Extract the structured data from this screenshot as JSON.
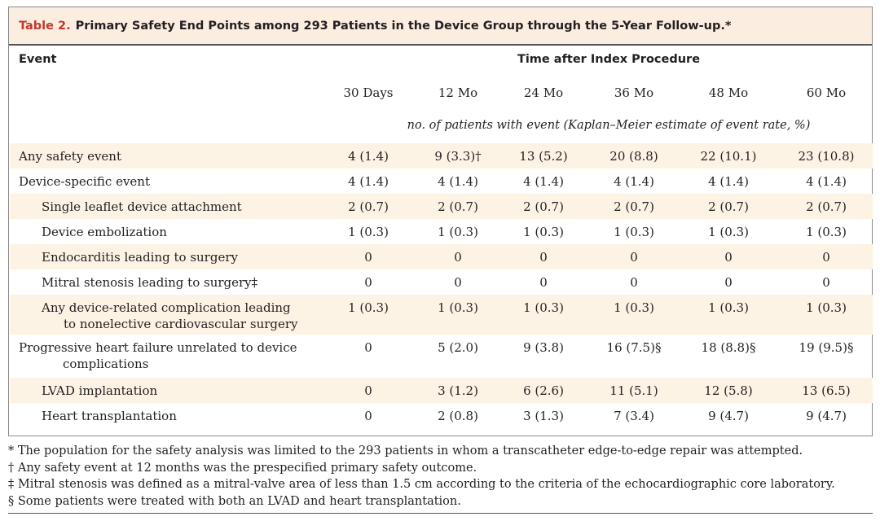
{
  "title": {
    "label": "Table 2.",
    "text": "Primary Safety End Points among 293 Patients in the Device Group through the 5-Year Follow-up.*"
  },
  "header": {
    "event_label": "Event",
    "group_label": "Time after Index Procedure",
    "columns": [
      "30 Days",
      "12 Mo",
      "24 Mo",
      "36 Mo",
      "48 Mo",
      "60 Mo"
    ],
    "units": "no. of patients with event (Kaplan–Meier estimate of event rate, %)"
  },
  "rows": [
    {
      "label": "Any safety event",
      "label2": "",
      "indent": false,
      "values": [
        "4 (1.4)",
        "9 (3.3)†",
        "13 (5.2)",
        "20 (8.8)",
        "22 (10.1)",
        "23 (10.8)"
      ]
    },
    {
      "label": "Device-specific event",
      "label2": "",
      "indent": false,
      "values": [
        "4 (1.4)",
        "4 (1.4)",
        "4 (1.4)",
        "4 (1.4)",
        "4 (1.4)",
        "4 (1.4)"
      ]
    },
    {
      "label": "Single leaflet device attachment",
      "label2": "",
      "indent": true,
      "values": [
        "2 (0.7)",
        "2 (0.7)",
        "2 (0.7)",
        "2 (0.7)",
        "2 (0.7)",
        "2 (0.7)"
      ]
    },
    {
      "label": "Device embolization",
      "label2": "",
      "indent": true,
      "values": [
        "1 (0.3)",
        "1 (0.3)",
        "1 (0.3)",
        "1 (0.3)",
        "1 (0.3)",
        "1 (0.3)"
      ]
    },
    {
      "label": "Endocarditis leading to surgery",
      "label2": "",
      "indent": true,
      "values": [
        "0",
        "0",
        "0",
        "0",
        "0",
        "0"
      ]
    },
    {
      "label": "Mitral stenosis leading to surgery‡",
      "label2": "",
      "indent": true,
      "values": [
        "0",
        "0",
        "0",
        "0",
        "0",
        "0"
      ]
    },
    {
      "label": "Any device-related complication leading",
      "label2": "to nonelective cardiovascular surgery",
      "indent": true,
      "values": [
        "1 (0.3)",
        "1 (0.3)",
        "1 (0.3)",
        "1 (0.3)",
        "1 (0.3)",
        "1 (0.3)"
      ]
    },
    {
      "label": "Progressive heart failure unrelated to device",
      "label2": "complications",
      "indent": false,
      "values": [
        "0",
        "5 (2.0)",
        "9 (3.8)",
        "16 (7.5)§",
        "18 (8.8)§",
        "19 (9.5)§"
      ]
    },
    {
      "label": "LVAD implantation",
      "label2": "",
      "indent": true,
      "values": [
        "0",
        "3 (1.2)",
        "6 (2.6)",
        "11 (5.1)",
        "12 (5.8)",
        "13 (6.5)"
      ]
    },
    {
      "label": "Heart transplantation",
      "label2": "",
      "indent": true,
      "values": [
        "0",
        "2 (0.8)",
        "3 (1.3)",
        "7 (3.4)",
        "9 (4.7)",
        "9 (4.7)"
      ]
    }
  ],
  "footnotes": [
    "* The population for the safety analysis was limited to the 293 patients in whom a transcatheter edge-to-edge repair was attempted.",
    "† Any safety event at 12 months was the prespecified primary safety outcome.",
    "‡ Mitral stenosis was defined as a mitral-valve area of less than 1.5 cm according to the criteria of the echocardiographic core laboratory.",
    "§ Some patients were treated with both an LVAD and heart transplantation."
  ]
}
